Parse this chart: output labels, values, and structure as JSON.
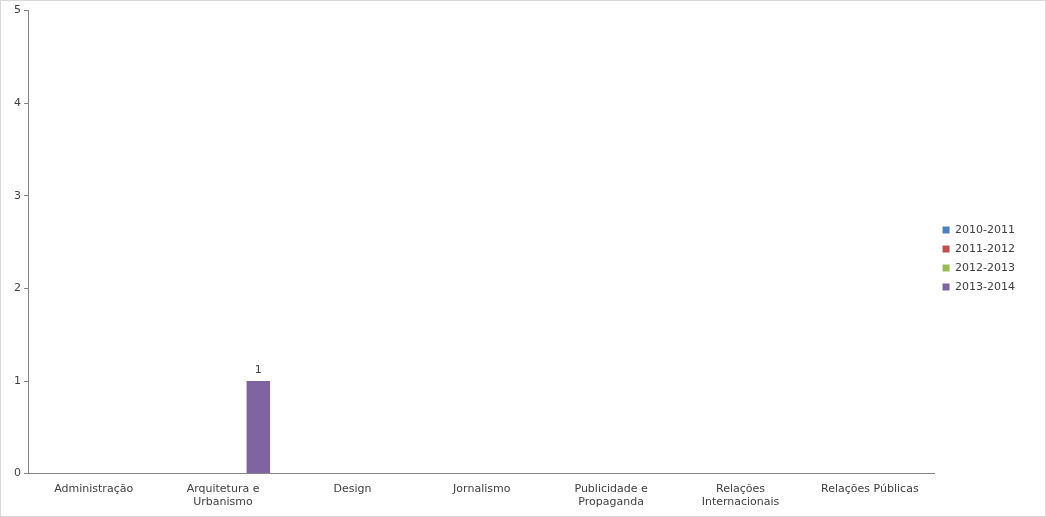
{
  "chart_data": {
    "type": "bar",
    "categories": [
      "Administração",
      "Arquitetura e Urbanismo",
      "Design",
      "Jornalismo",
      "Publicidade e Propaganda",
      "Relações Internacionais",
      "Relações Públicas"
    ],
    "series": [
      {
        "name": "2010-2011",
        "color": "#4f81bd",
        "values": [
          0,
          0,
          0,
          0,
          0,
          0,
          0
        ]
      },
      {
        "name": "2011-2012",
        "color": "#c0504d",
        "values": [
          0,
          0,
          0,
          0,
          0,
          0,
          0
        ]
      },
      {
        "name": "2012-2013",
        "color": "#9bbb59",
        "values": [
          0,
          0,
          0,
          0,
          0,
          0,
          0
        ]
      },
      {
        "name": "2013-2014",
        "color": "#8064a2",
        "values": [
          0,
          1,
          0,
          0,
          0,
          0,
          0
        ],
        "value_labels": [
          null,
          "1",
          null,
          null,
          null,
          null,
          null
        ]
      }
    ],
    "ylim": [
      0,
      5
    ],
    "yticks": [
      0,
      1,
      2,
      3,
      4,
      5
    ],
    "grid": false,
    "legend": "right"
  }
}
